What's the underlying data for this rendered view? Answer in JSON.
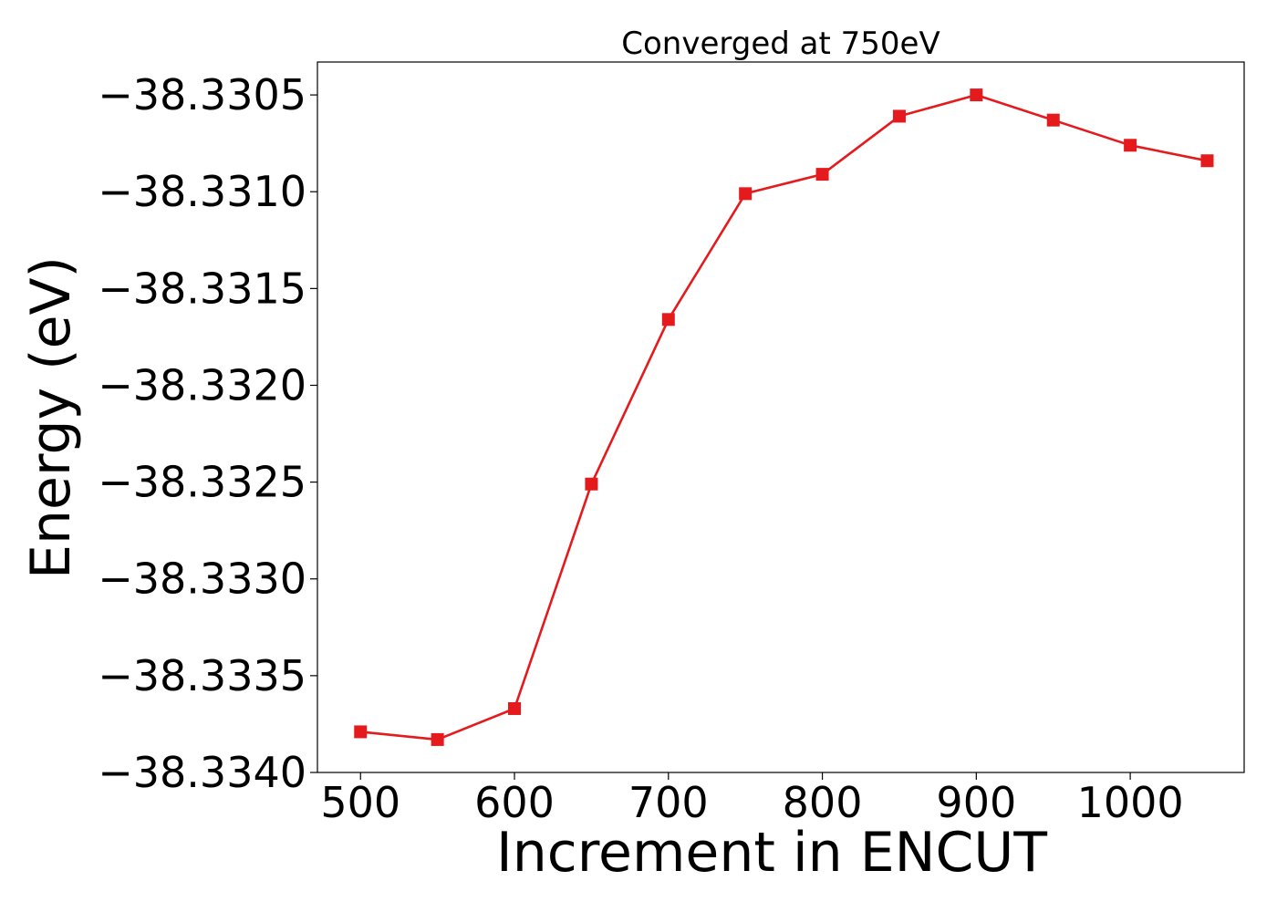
{
  "chart_data": {
    "type": "line",
    "title": "Converged at 750eV",
    "xlabel": "Increment in ENCUT",
    "ylabel": "Energy (eV)",
    "x": [
      500,
      550,
      600,
      650,
      700,
      750,
      800,
      850,
      900,
      950,
      1000,
      1050
    ],
    "series": [
      {
        "values": [
          -38.33379,
          -38.33383,
          -38.33367,
          -38.33251,
          -38.33166,
          -38.33101,
          -38.33091,
          -38.33061,
          -38.3305,
          -38.33063,
          -38.33076,
          -38.33084
        ],
        "color": "#e41a1c",
        "marker": "square"
      }
    ],
    "xlim": [
      472,
      1074
    ],
    "ylim": [
      -38.334,
      -38.33033
    ],
    "xticks": [
      500,
      600,
      700,
      800,
      900,
      1000
    ],
    "xtick_labels": [
      "500",
      "600",
      "700",
      "800",
      "900",
      "1000"
    ],
    "yticks": [
      -38.334,
      -38.3335,
      -38.333,
      -38.3325,
      -38.332,
      -38.3315,
      -38.331,
      -38.3305
    ],
    "ytick_labels": [
      "−38.3340",
      "−38.3335",
      "−38.3330",
      "−38.3325",
      "−38.3320",
      "−38.3315",
      "−38.3310",
      "−38.3305"
    ],
    "grid": false,
    "legend": "none"
  }
}
